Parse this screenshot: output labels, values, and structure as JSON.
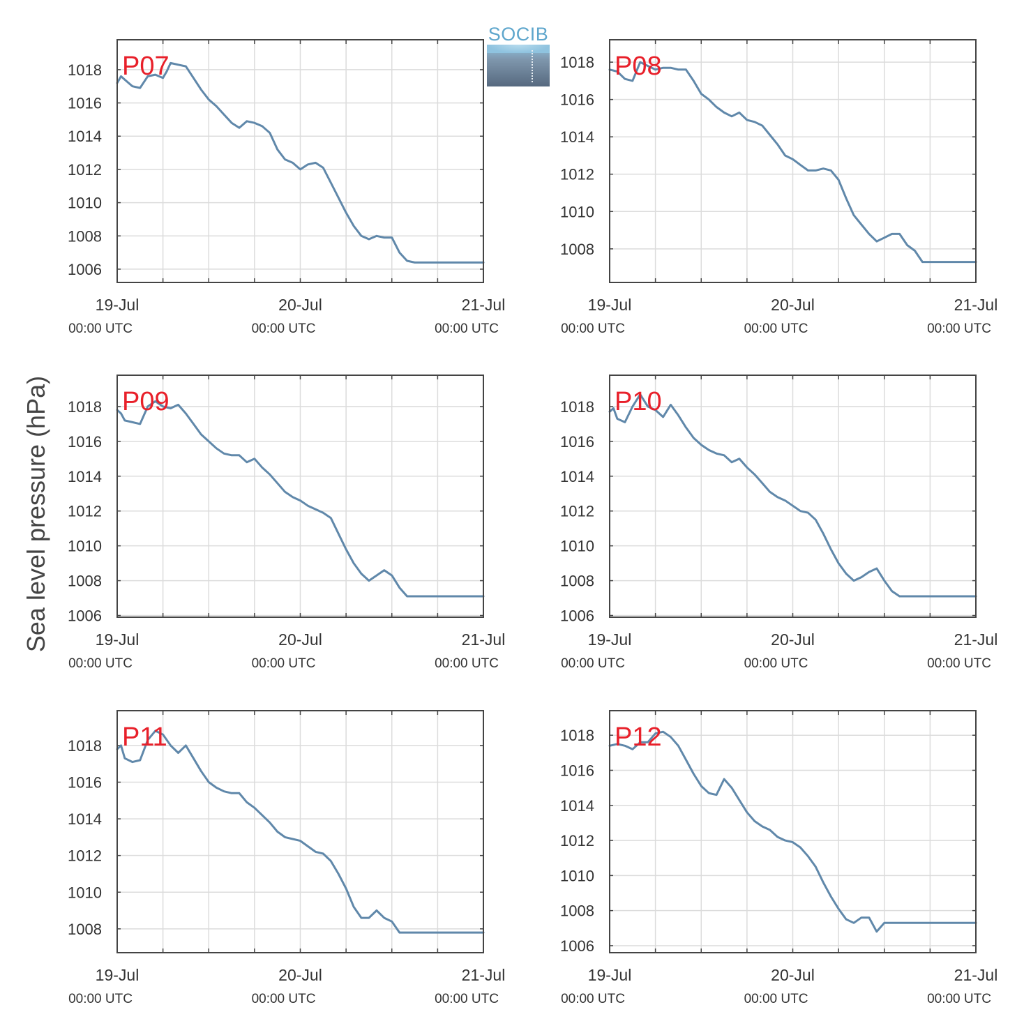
{
  "figure": {
    "ylabel": "Sea level pressure (hPa)",
    "logo_text": "SOCIB",
    "colors": {
      "line": "#6088aa",
      "station": "#e8202a",
      "grid": "#dcdcdc",
      "axis": "#444444",
      "text": "#333333"
    }
  },
  "chart_data": [
    {
      "type": "line",
      "station": "P07",
      "ylim": [
        1005.2,
        1019.8
      ],
      "yticks": [
        1006,
        1008,
        1010,
        1012,
        1014,
        1016,
        1018
      ],
      "xlim": [
        0,
        48
      ],
      "x_tick_labels": [
        {
          "x": 0,
          "day": "19-Jul",
          "time": "00:00 UTC"
        },
        {
          "x": 24,
          "day": "20-Jul",
          "time": "00:00 UTC"
        },
        {
          "x": 48,
          "day": "21-Jul",
          "time": "00:00 UTC"
        }
      ],
      "x": [
        0,
        0.5,
        1,
        2,
        3,
        4,
        5,
        6,
        6.5,
        7,
        8,
        9,
        10,
        11,
        12,
        13,
        14,
        15,
        16,
        17,
        18,
        19,
        20,
        21,
        22,
        23,
        24,
        25,
        26,
        27,
        28,
        29,
        30,
        31,
        32,
        33,
        34,
        35,
        36,
        37,
        38,
        39,
        40,
        41,
        42,
        43,
        44,
        45,
        46,
        47,
        48
      ],
      "y": [
        1017.2,
        1017.6,
        1017.4,
        1017.0,
        1016.9,
        1017.6,
        1017.7,
        1017.5,
        1017.9,
        1018.4,
        1018.3,
        1018.2,
        1017.5,
        1016.8,
        1016.2,
        1015.8,
        1015.3,
        1014.8,
        1014.5,
        1014.9,
        1014.8,
        1014.6,
        1014.2,
        1013.2,
        1012.6,
        1012.4,
        1012.0,
        1012.3,
        1012.4,
        1012.1,
        1011.2,
        1010.3,
        1009.4,
        1008.6,
        1008.0,
        1007.8,
        1008.0,
        1007.9,
        1007.9,
        1007.0,
        1006.5,
        1006.4,
        1006.4,
        1006.4,
        1006.4,
        1006.4,
        1006.4,
        1006.4,
        1006.4,
        1006.4,
        1006.4
      ]
    },
    {
      "type": "line",
      "station": "P08",
      "ylim": [
        1006.2,
        1019.2
      ],
      "yticks": [
        1008,
        1010,
        1012,
        1014,
        1016,
        1018
      ],
      "xlim": [
        0,
        48
      ],
      "x_tick_labels": [
        {
          "x": 0,
          "day": "19-Jul",
          "time": "00:00 UTC"
        },
        {
          "x": 24,
          "day": "20-Jul",
          "time": "00:00 UTC"
        },
        {
          "x": 48,
          "day": "21-Jul",
          "time": "00:00 UTC"
        }
      ],
      "x": [
        0,
        1,
        2,
        3,
        4,
        5,
        6,
        7,
        8,
        9,
        10,
        11,
        12,
        13,
        14,
        15,
        16,
        17,
        18,
        19,
        20,
        21,
        22,
        23,
        24,
        25,
        26,
        27,
        28,
        29,
        30,
        31,
        32,
        33,
        34,
        35,
        36,
        37,
        38,
        39,
        40,
        41,
        42,
        43,
        44,
        45,
        46,
        47,
        48
      ],
      "y": [
        1017.6,
        1017.5,
        1017.1,
        1017.0,
        1018.0,
        1017.8,
        1017.6,
        1017.7,
        1017.7,
        1017.6,
        1017.6,
        1017.0,
        1016.3,
        1016.0,
        1015.6,
        1015.3,
        1015.1,
        1015.3,
        1014.9,
        1014.8,
        1014.6,
        1014.1,
        1013.6,
        1013.0,
        1012.8,
        1012.5,
        1012.2,
        1012.2,
        1012.3,
        1012.2,
        1011.7,
        1010.7,
        1009.8,
        1009.3,
        1008.8,
        1008.4,
        1008.6,
        1008.8,
        1008.8,
        1008.2,
        1007.9,
        1007.3,
        1007.3,
        1007.3,
        1007.3,
        1007.3,
        1007.3,
        1007.3,
        1007.3
      ]
    },
    {
      "type": "line",
      "station": "P09",
      "ylim": [
        1005.9,
        1019.8
      ],
      "yticks": [
        1006,
        1008,
        1010,
        1012,
        1014,
        1016,
        1018
      ],
      "xlim": [
        0,
        48
      ],
      "x_tick_labels": [
        {
          "x": 0,
          "day": "19-Jul",
          "time": "00:00 UTC"
        },
        {
          "x": 24,
          "day": "20-Jul",
          "time": "00:00 UTC"
        },
        {
          "x": 48,
          "day": "21-Jul",
          "time": "00:00 UTC"
        }
      ],
      "x": [
        0,
        0.5,
        1,
        2,
        3,
        4,
        5,
        6,
        7,
        8,
        9,
        10,
        11,
        12,
        13,
        14,
        15,
        16,
        17,
        18,
        19,
        20,
        21,
        22,
        23,
        24,
        25,
        26,
        27,
        28,
        29,
        30,
        31,
        32,
        33,
        34,
        35,
        36,
        37,
        38,
        39,
        40,
        41,
        42,
        43,
        44,
        45,
        46,
        47,
        48
      ],
      "y": [
        1017.8,
        1017.6,
        1017.2,
        1017.1,
        1017.0,
        1018.0,
        1018.3,
        1018.0,
        1017.9,
        1018.1,
        1017.6,
        1017.0,
        1016.4,
        1016.0,
        1015.6,
        1015.3,
        1015.2,
        1015.2,
        1014.8,
        1015.0,
        1014.5,
        1014.1,
        1013.6,
        1013.1,
        1012.8,
        1012.6,
        1012.3,
        1012.1,
        1011.9,
        1011.6,
        1010.7,
        1009.8,
        1009.0,
        1008.4,
        1008.0,
        1008.3,
        1008.6,
        1008.3,
        1007.6,
        1007.1,
        1007.1,
        1007.1,
        1007.1,
        1007.1,
        1007.1,
        1007.1,
        1007.1,
        1007.1,
        1007.1,
        1007.1
      ]
    },
    {
      "type": "line",
      "station": "P10",
      "ylim": [
        1005.9,
        1019.8
      ],
      "yticks": [
        1006,
        1008,
        1010,
        1012,
        1014,
        1016,
        1018
      ],
      "xlim": [
        0,
        48
      ],
      "x_tick_labels": [
        {
          "x": 0,
          "day": "19-Jul",
          "time": "00:00 UTC"
        },
        {
          "x": 24,
          "day": "20-Jul",
          "time": "00:00 UTC"
        },
        {
          "x": 48,
          "day": "21-Jul",
          "time": "00:00 UTC"
        }
      ],
      "x": [
        0,
        0.5,
        1,
        2,
        3,
        4,
        5,
        6,
        7,
        8,
        9,
        10,
        11,
        12,
        13,
        14,
        15,
        16,
        17,
        18,
        19,
        20,
        21,
        22,
        23,
        24,
        25,
        26,
        27,
        28,
        29,
        30,
        31,
        32,
        33,
        34,
        35,
        36,
        37,
        38,
        39,
        40,
        41,
        42,
        43,
        44,
        45,
        46,
        47,
        48
      ],
      "y": [
        1017.7,
        1017.9,
        1017.3,
        1017.1,
        1018.0,
        1018.7,
        1018.0,
        1017.8,
        1017.4,
        1018.1,
        1017.5,
        1016.8,
        1016.2,
        1015.8,
        1015.5,
        1015.3,
        1015.2,
        1014.8,
        1015.0,
        1014.5,
        1014.1,
        1013.6,
        1013.1,
        1012.8,
        1012.6,
        1012.3,
        1012.0,
        1011.9,
        1011.5,
        1010.7,
        1009.8,
        1009.0,
        1008.4,
        1008.0,
        1008.2,
        1008.5,
        1008.7,
        1008.0,
        1007.4,
        1007.1,
        1007.1,
        1007.1,
        1007.1,
        1007.1,
        1007.1,
        1007.1,
        1007.1,
        1007.1,
        1007.1,
        1007.1
      ]
    },
    {
      "type": "line",
      "station": "P11",
      "ylim": [
        1006.7,
        1019.9
      ],
      "yticks": [
        1008,
        1010,
        1012,
        1014,
        1016,
        1018
      ],
      "xlim": [
        0,
        48
      ],
      "x_tick_labels": [
        {
          "x": 0,
          "day": "19-Jul",
          "time": "00:00 UTC"
        },
        {
          "x": 24,
          "day": "20-Jul",
          "time": "00:00 UTC"
        },
        {
          "x": 48,
          "day": "21-Jul",
          "time": "00:00 UTC"
        }
      ],
      "x": [
        0,
        0.5,
        1,
        2,
        3,
        4,
        5,
        6,
        7,
        8,
        9,
        10,
        11,
        12,
        13,
        14,
        15,
        16,
        17,
        18,
        19,
        20,
        21,
        22,
        23,
        24,
        25,
        26,
        27,
        28,
        29,
        30,
        31,
        32,
        33,
        34,
        35,
        36,
        37,
        38,
        39,
        40,
        41,
        42,
        43,
        44,
        45,
        46,
        47,
        48
      ],
      "y": [
        1017.8,
        1018.0,
        1017.3,
        1017.1,
        1017.2,
        1018.3,
        1018.8,
        1018.6,
        1018.0,
        1017.6,
        1018.0,
        1017.3,
        1016.6,
        1016.0,
        1015.7,
        1015.5,
        1015.4,
        1015.4,
        1014.9,
        1014.6,
        1014.2,
        1013.8,
        1013.3,
        1013.0,
        1012.9,
        1012.8,
        1012.5,
        1012.2,
        1012.1,
        1011.7,
        1011.0,
        1010.2,
        1009.2,
        1008.6,
        1008.6,
        1009.0,
        1008.6,
        1008.4,
        1007.8,
        1007.8,
        1007.8,
        1007.8,
        1007.8,
        1007.8,
        1007.8,
        1007.8,
        1007.8,
        1007.8,
        1007.8,
        1007.8
      ]
    },
    {
      "type": "line",
      "station": "P12",
      "ylim": [
        1005.6,
        1019.4
      ],
      "yticks": [
        1006,
        1008,
        1010,
        1012,
        1014,
        1016,
        1018
      ],
      "xlim": [
        0,
        48
      ],
      "x_tick_labels": [
        {
          "x": 0,
          "day": "19-Jul",
          "time": "00:00 UTC"
        },
        {
          "x": 24,
          "day": "20-Jul",
          "time": "00:00 UTC"
        },
        {
          "x": 48,
          "day": "21-Jul",
          "time": "00:00 UTC"
        }
      ],
      "x": [
        0,
        1,
        2,
        3,
        4,
        5,
        6,
        7,
        8,
        9,
        10,
        11,
        12,
        13,
        14,
        15,
        16,
        17,
        18,
        19,
        20,
        21,
        22,
        23,
        24,
        25,
        26,
        27,
        28,
        29,
        30,
        31,
        32,
        33,
        34,
        35,
        36,
        37,
        38,
        39,
        40,
        41,
        42,
        43,
        44,
        45,
        46,
        47,
        48
      ],
      "y": [
        1017.4,
        1017.5,
        1017.4,
        1017.2,
        1017.6,
        1017.6,
        1018.1,
        1018.2,
        1017.9,
        1017.4,
        1016.6,
        1015.8,
        1015.1,
        1014.7,
        1014.6,
        1015.5,
        1015.0,
        1014.3,
        1013.6,
        1013.1,
        1012.8,
        1012.6,
        1012.2,
        1012.0,
        1011.9,
        1011.6,
        1011.1,
        1010.5,
        1009.6,
        1008.8,
        1008.1,
        1007.5,
        1007.3,
        1007.6,
        1007.6,
        1006.8,
        1007.3,
        1007.3,
        1007.3,
        1007.3,
        1007.3,
        1007.3,
        1007.3,
        1007.3,
        1007.3,
        1007.3,
        1007.3,
        1007.3,
        1007.3
      ]
    }
  ]
}
